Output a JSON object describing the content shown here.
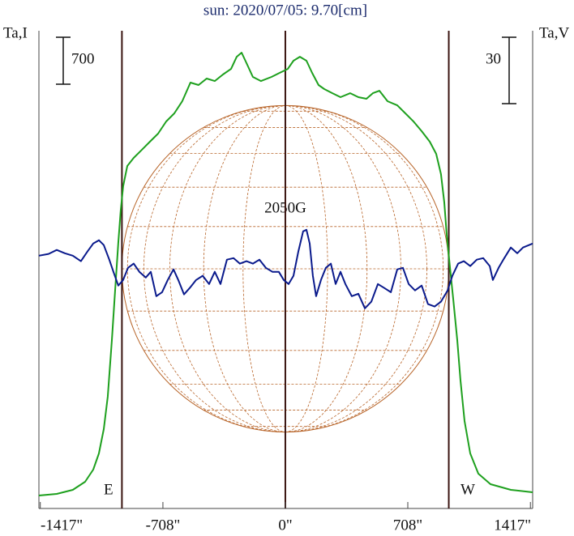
{
  "chart_data": {
    "type": "line",
    "title": "sun: 2020/07/05: 9.70[cm]",
    "y_label": "Ta,I",
    "y2_label": "Ta,V",
    "annotation": "2050G",
    "east_label": "E",
    "west_label": "W",
    "xlim": [
      -1425,
      1430
    ],
    "xticks": [
      {
        "value": -1417,
        "label": "-1417\""
      },
      {
        "value": -708,
        "label": "-708\""
      },
      {
        "value": 0,
        "label": "0\""
      },
      {
        "value": 708,
        "label": "708\""
      },
      {
        "value": 1417,
        "label": "1417\""
      }
    ],
    "ylim": [
      -193,
      6928
    ],
    "y2lim": [
      -107,
      109
    ],
    "scale_bar": {
      "value": 700,
      "label": "700"
    },
    "scale_bar2": {
      "value": 30,
      "label": "30"
    },
    "limb_lines": [
      -945,
      0,
      945
    ],
    "series": [
      {
        "name": "Ta,I",
        "color": "#1ea01e",
        "x": [
          -1425,
          -1322,
          -1229,
          -1158,
          -1111,
          -1078,
          -1050,
          -1027,
          -1003,
          -985,
          -966,
          -952,
          -938,
          -914,
          -877,
          -830,
          -783,
          -736,
          -689,
          -642,
          -596,
          -549,
          -502,
          -455,
          -408,
          -361,
          -314,
          -281,
          -253,
          -220,
          -188,
          -141,
          -80,
          -33,
          14,
          47,
          84,
          122,
          155,
          192,
          225,
          272,
          319,
          375,
          422,
          469,
          506,
          544,
          591,
          647,
          694,
          741,
          788,
          835,
          872,
          900,
          919,
          933,
          952,
          971,
          994,
          1013,
          1036,
          1069,
          1116,
          1186,
          1304,
          1430
        ],
        "values": [
          0,
          24,
          84,
          205,
          386,
          628,
          990,
          1472,
          2317,
          3041,
          3766,
          4248,
          4610,
          4912,
          5033,
          5153,
          5274,
          5395,
          5576,
          5697,
          5878,
          6155,
          6119,
          6216,
          6179,
          6276,
          6360,
          6541,
          6602,
          6421,
          6240,
          6179,
          6240,
          6300,
          6360,
          6481,
          6541,
          6481,
          6300,
          6119,
          6059,
          5998,
          5938,
          5998,
          5938,
          5914,
          5998,
          6034,
          5878,
          5817,
          5697,
          5576,
          5431,
          5274,
          5093,
          4792,
          4369,
          3886,
          3403,
          2921,
          2317,
          1714,
          1110,
          628,
          326,
          169,
          84,
          48
        ]
      },
      {
        "name": "Ta,V",
        "color": "#0a1a8c",
        "axis": "y2",
        "x": [
          -1425,
          -1369,
          -1322,
          -1275,
          -1229,
          -1182,
          -1144,
          -1111,
          -1078,
          -1050,
          -1018,
          -994,
          -966,
          -938,
          -910,
          -877,
          -844,
          -807,
          -778,
          -746,
          -713,
          -680,
          -647,
          -619,
          -586,
          -553,
          -516,
          -478,
          -441,
          -408,
          -375,
          -338,
          -300,
          -263,
          -225,
          -188,
          -150,
          -113,
          -75,
          -38,
          -9,
          19,
          47,
          75,
          103,
          122,
          141,
          159,
          178,
          206,
          234,
          263,
          291,
          319,
          347,
          384,
          422,
          460,
          497,
          535,
          572,
          610,
          647,
          680,
          713,
          750,
          788,
          825,
          863,
          900,
          938,
          966,
          999,
          1032,
          1069,
          1107,
          1144,
          1182,
          1200,
          1233,
          1266,
          1304,
          1341,
          1374,
          1430
        ],
        "values": [
          7.3,
          8.1,
          9.9,
          8.4,
          7.3,
          4.8,
          9.2,
          12.8,
          14.3,
          12.1,
          5.5,
          0,
          -6.2,
          -3.7,
          1.8,
          3.7,
          0,
          -2.6,
          0,
          -11,
          -9.2,
          -3.7,
          1.1,
          -3.7,
          -10.2,
          -7.3,
          -3.7,
          -1.8,
          -5.5,
          0,
          -5.5,
          5.5,
          6.2,
          3.7,
          4.8,
          3.7,
          5.5,
          1.8,
          0,
          0,
          -3.7,
          -5.5,
          -1.8,
          9.2,
          18.3,
          19,
          12.8,
          -1.8,
          -11,
          -3.7,
          1.8,
          3.7,
          -5.5,
          0,
          -5.5,
          -11,
          -9.9,
          -16.5,
          -13.5,
          -5.5,
          -7.3,
          -9.2,
          1.1,
          1.8,
          -5.5,
          -8.4,
          -6.2,
          -14.6,
          -15.7,
          -13.5,
          -8.4,
          -1.8,
          3.7,
          4.8,
          2.6,
          5.5,
          6.2,
          2.6,
          -3.7,
          1.8,
          6.2,
          11,
          8.4,
          11,
          12.8
        ]
      }
    ]
  }
}
